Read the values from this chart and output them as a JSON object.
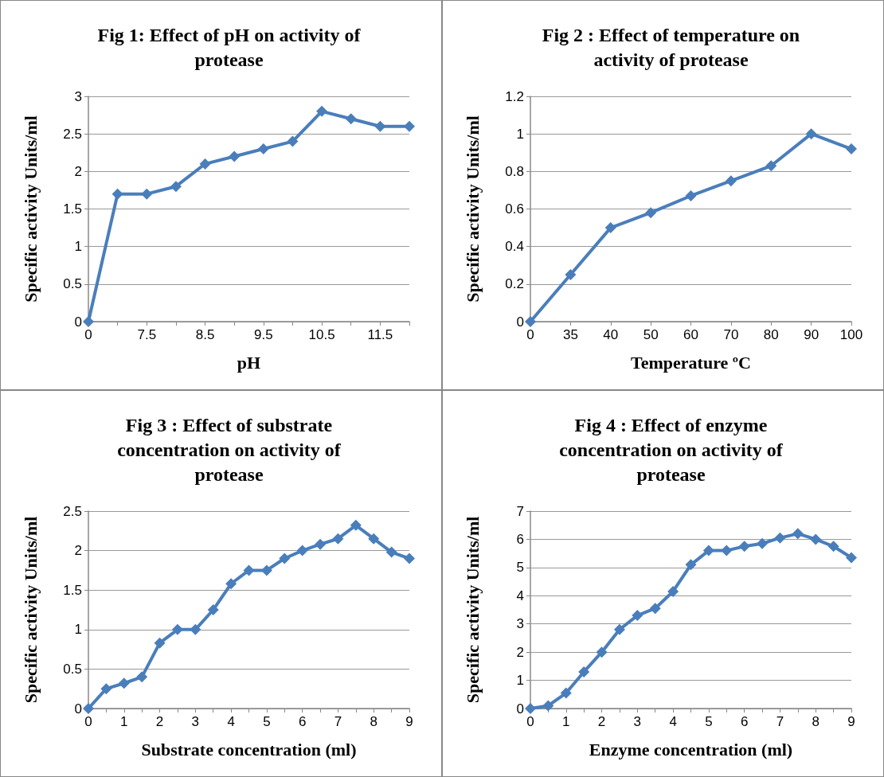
{
  "chart_data": [
    {
      "type": "line",
      "title": "Fig 1: Effect of pH on activity of protease",
      "xlabel": "pH",
      "ylabel": "Specific activity Units/ml",
      "categories": [
        "0",
        null,
        "7.5",
        null,
        "8.5",
        null,
        "9.5",
        null,
        "10.5",
        null,
        "11.5",
        null
      ],
      "series": [
        {
          "color": "#4a7ebb",
          "values": [
            0,
            1.7,
            1.7,
            1.8,
            2.1,
            2.2,
            2.3,
            2.4,
            2.8,
            2.7,
            2.6,
            2.6
          ]
        }
      ],
      "ylim": [
        0,
        3
      ],
      "yticks": [
        0,
        0.5,
        1,
        1.5,
        2,
        2.5,
        3
      ],
      "grid": "y",
      "marker": "diamond",
      "line_style": "solid"
    },
    {
      "type": "line",
      "title": "Fig 2 : Effect of temperature on activity of protease",
      "xlabel": "Temperature ºC",
      "ylabel": "Specific activity Units/ml",
      "categories": [
        "0",
        "35",
        "40",
        "50",
        "60",
        "70",
        "80",
        "90",
        "100"
      ],
      "series": [
        {
          "color": "#4a7ebb",
          "values": [
            0,
            0.25,
            0.5,
            0.58,
            0.67,
            0.75,
            0.83,
            1.0,
            0.92
          ]
        }
      ],
      "ylim": [
        0,
        1.2
      ],
      "yticks": [
        0,
        0.2,
        0.4,
        0.6,
        0.8,
        1,
        1.2
      ],
      "grid": "y",
      "marker": "diamond",
      "line_style": "solid"
    },
    {
      "type": "line",
      "title": "Fig 3 : Effect of substrate concentration on activity of protease",
      "xlabel": "Substrate concentration (ml)",
      "ylabel": "Specific activity Units/ml",
      "categories": [
        "0",
        null,
        "1",
        null,
        "2",
        null,
        "3",
        null,
        "4",
        null,
        "5",
        null,
        "6",
        null,
        "7",
        null,
        "8",
        null,
        "9"
      ],
      "series": [
        {
          "color": "#4a7ebb",
          "values": [
            0,
            0.25,
            0.32,
            0.4,
            0.83,
            1.0,
            1.0,
            1.25,
            1.58,
            1.75,
            1.75,
            1.9,
            2.0,
            2.08,
            2.15,
            2.32,
            2.15,
            1.98,
            1.9
          ]
        }
      ],
      "ylim": [
        0,
        2.5
      ],
      "yticks": [
        0,
        0.5,
        1,
        1.5,
        2,
        2.5
      ],
      "grid": "y",
      "marker": "diamond",
      "line_style": "solid"
    },
    {
      "type": "line",
      "title": "Fig 4 : Effect of enzyme concentration on activity of protease",
      "xlabel": "Enzyme concentration (ml)",
      "ylabel": "Specific activity Units/ml",
      "categories": [
        "0",
        null,
        "1",
        null,
        "2",
        null,
        "3",
        null,
        "4",
        null,
        "5",
        null,
        "6",
        null,
        "7",
        null,
        "8",
        null,
        "9"
      ],
      "series": [
        {
          "color": "#4a7ebb",
          "values": [
            0,
            0.1,
            0.55,
            1.3,
            2.0,
            2.8,
            3.3,
            3.55,
            4.15,
            5.1,
            5.6,
            5.6,
            5.75,
            5.85,
            6.05,
            6.2,
            6.0,
            5.75,
            5.35
          ]
        }
      ],
      "ylim": [
        0,
        7
      ],
      "yticks": [
        0,
        1,
        2,
        3,
        4,
        5,
        6,
        7
      ],
      "grid": "y",
      "marker": "diamond",
      "line_style": "solid"
    }
  ]
}
